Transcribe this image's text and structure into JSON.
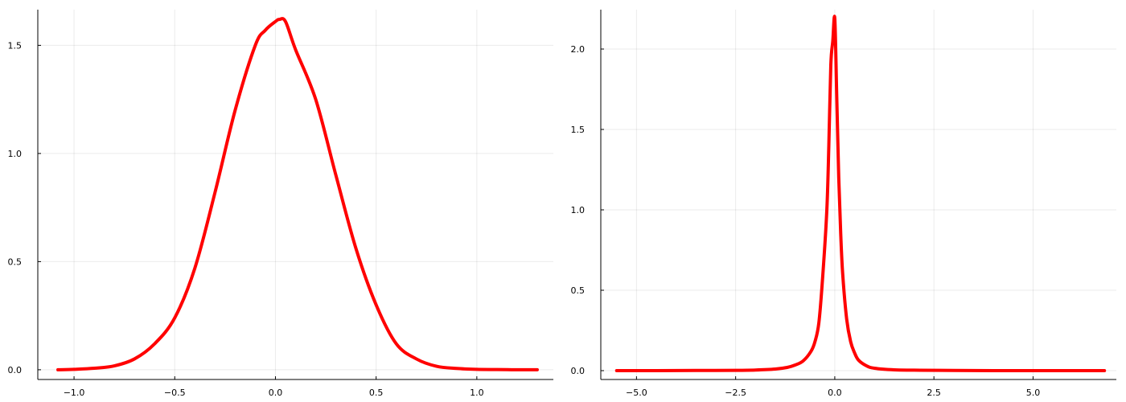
{
  "chart_data": [
    {
      "type": "line",
      "title": "",
      "xlabel": "",
      "ylabel": "",
      "xlim": [
        -1.18,
        1.38
      ],
      "ylim": [
        -0.045,
        1.665
      ],
      "xticks": [
        -1.0,
        -0.5,
        0.0,
        0.5,
        1.0
      ],
      "xtick_labels": [
        "−1.0",
        "−0.5",
        "0.0",
        "0.5",
        "1.0"
      ],
      "yticks": [
        0.0,
        0.5,
        1.0,
        1.5
      ],
      "ytick_labels": [
        "0.0",
        "0.5",
        "1.0",
        "1.5"
      ],
      "grid": true,
      "legend": "none",
      "color": "#ff0000",
      "series": [
        {
          "x": [
            -1.08,
            -1.0,
            -0.9,
            -0.8,
            -0.7,
            -0.6,
            -0.5,
            -0.4,
            -0.3,
            -0.2,
            -0.1,
            -0.05,
            0.0,
            0.02,
            0.05,
            0.1,
            0.2,
            0.3,
            0.4,
            0.5,
            0.6,
            0.7,
            0.8,
            0.9,
            1.0,
            1.1,
            1.2,
            1.3
          ],
          "y": [
            0.0,
            0.002,
            0.007,
            0.018,
            0.05,
            0.12,
            0.24,
            0.47,
            0.82,
            1.2,
            1.5,
            1.57,
            1.61,
            1.62,
            1.61,
            1.48,
            1.25,
            0.9,
            0.56,
            0.3,
            0.12,
            0.05,
            0.016,
            0.006,
            0.002,
            0.001,
            0.0,
            0.0
          ]
        }
      ]
    },
    {
      "type": "line",
      "title": "",
      "xlabel": "",
      "ylabel": "",
      "xlim": [
        -5.9,
        7.1
      ],
      "ylim": [
        -0.055,
        2.245
      ],
      "xticks": [
        -5.0,
        -2.5,
        0.0,
        2.5,
        5.0
      ],
      "xtick_labels": [
        "−5.0",
        "−2.5",
        "0.0",
        "2.5",
        "5.0"
      ],
      "yticks": [
        0.0,
        0.5,
        1.0,
        1.5,
        2.0
      ],
      "ytick_labels": [
        "0.0",
        "0.5",
        "1.0",
        "1.5",
        "2.0"
      ],
      "grid": true,
      "legend": "none",
      "color": "#ff0000",
      "series": [
        {
          "x": [
            -5.5,
            -4.5,
            -3.5,
            -2.5,
            -2.0,
            -1.5,
            -1.2,
            -1.0,
            -0.8,
            -0.6,
            -0.5,
            -0.4,
            -0.3,
            -0.2,
            -0.15,
            -0.1,
            -0.05,
            0.0,
            0.05,
            0.1,
            0.15,
            0.2,
            0.3,
            0.4,
            0.5,
            0.6,
            0.8,
            1.0,
            1.5,
            2.0,
            3.0,
            4.0,
            5.0,
            6.0,
            6.8
          ],
          "y": [
            0.0,
            0.0,
            0.001,
            0.002,
            0.004,
            0.01,
            0.02,
            0.035,
            0.06,
            0.12,
            0.18,
            0.3,
            0.6,
            1.0,
            1.4,
            1.9,
            2.05,
            2.19,
            1.7,
            1.2,
            0.85,
            0.6,
            0.32,
            0.18,
            0.11,
            0.065,
            0.03,
            0.015,
            0.005,
            0.003,
            0.001,
            0.0,
            0.0,
            0.0,
            0.0
          ]
        }
      ]
    }
  ]
}
